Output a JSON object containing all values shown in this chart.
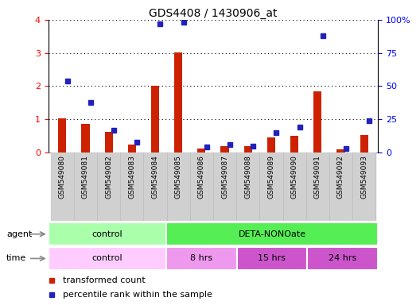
{
  "title": "GDS4408 / 1430906_at",
  "samples": [
    "GSM549080",
    "GSM549081",
    "GSM549082",
    "GSM549083",
    "GSM549084",
    "GSM549085",
    "GSM549086",
    "GSM549087",
    "GSM549088",
    "GSM549089",
    "GSM549090",
    "GSM549091",
    "GSM549092",
    "GSM549093"
  ],
  "red_values": [
    1.02,
    0.87,
    0.62,
    0.25,
    2.02,
    3.01,
    0.12,
    0.18,
    0.18,
    0.45,
    0.5,
    1.84,
    0.09,
    0.52
  ],
  "blue_values_pct": [
    54,
    38,
    17,
    8,
    97,
    98,
    4,
    6,
    5,
    15,
    19,
    88,
    3,
    24
  ],
  "ylim_left": [
    0,
    4
  ],
  "ylim_right": [
    0,
    100
  ],
  "yticks_left": [
    0,
    1,
    2,
    3,
    4
  ],
  "yticks_right": [
    0,
    25,
    50,
    75,
    100
  ],
  "yticklabels_right": [
    "0",
    "25",
    "50",
    "75",
    "100%"
  ],
  "red_color": "#cc2200",
  "blue_color": "#2222bb",
  "agent_groups": [
    {
      "label": "control",
      "start": 0,
      "end": 5,
      "color": "#aaffaa"
    },
    {
      "label": "DETA-NONOate",
      "start": 5,
      "end": 14,
      "color": "#55ee55"
    }
  ],
  "time_subgroups": [
    {
      "label": "control",
      "start": 0,
      "end": 5,
      "color": "#ffccff"
    },
    {
      "label": "8 hrs",
      "start": 5,
      "end": 8,
      "color": "#ee99ee"
    },
    {
      "label": "15 hrs",
      "start": 8,
      "end": 11,
      "color": "#cc55cc"
    },
    {
      "label": "24 hrs",
      "start": 11,
      "end": 14,
      "color": "#cc55cc"
    }
  ],
  "legend_items": [
    {
      "color": "#cc2200",
      "label": "transformed count"
    },
    {
      "color": "#2222bb",
      "label": "percentile rank within the sample"
    }
  ],
  "agent_label": "agent",
  "time_label": "time"
}
